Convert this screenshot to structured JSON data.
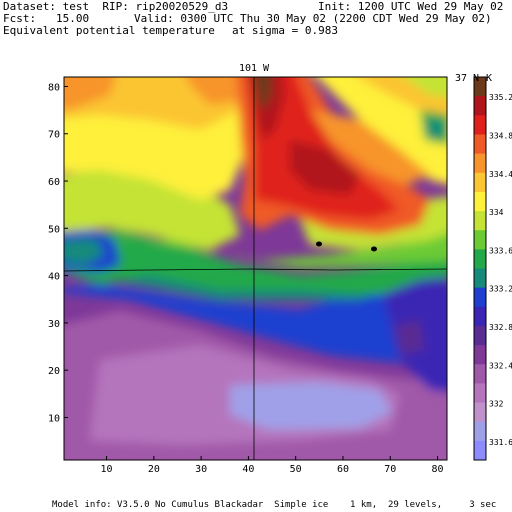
{
  "header": {
    "dataset": "Dataset: test  RIP: rip20020529_d3",
    "init": "Init: 1200 UTC Wed 29 May 02",
    "fcst": "Fcst:   15.00",
    "valid": "Valid: 0300 UTC Thu 30 May 02 (2200 CDT Wed 29 May 02)",
    "field": "Equivalent potential temperature",
    "sigma": "at sigma = 0.983"
  },
  "plot": {
    "top_label_meridian": "101 W",
    "top_label_parallel": "37 N",
    "unit": "K",
    "x_ticks": [
      "10",
      "20",
      "30",
      "40",
      "50",
      "60",
      "70",
      "80"
    ],
    "y_ticks": [
      "10",
      "20",
      "30",
      "40",
      "50",
      "60",
      "70",
      "80"
    ]
  },
  "colorbar": {
    "labels": [
      "335.2",
      "334.8",
      "334.4",
      "334",
      "333.6",
      "333.2",
      "332.8",
      "332.4",
      "332",
      "331.6"
    ],
    "colors": [
      "#6b3a1a",
      "#b0151b",
      "#e0201c",
      "#f05a26",
      "#f7942b",
      "#fbc533",
      "#fef03b",
      "#c4e334",
      "#6ccb35",
      "#23a94a",
      "#178a7c",
      "#1e3fd0",
      "#3b25b4",
      "#5a2b93",
      "#7e3898",
      "#a058a8",
      "#b575bd",
      "#c092cc",
      "#a0a0e8",
      "#8c8cff"
    ]
  },
  "footer": {
    "model_info": "Model info: V3.5.0 No Cumulus Blackadar  Simple ice    1 km,  29 levels,     3 sec"
  }
}
